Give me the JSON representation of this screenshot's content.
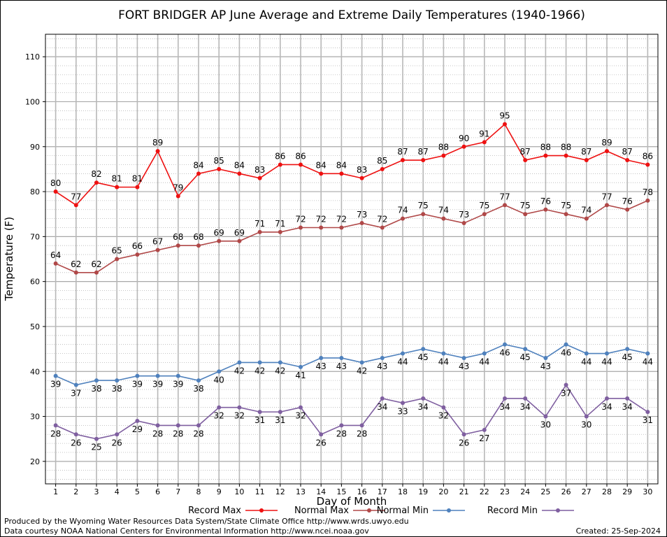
{
  "chart_data": {
    "type": "line",
    "title": "FORT BRIDGER AP June Average and Extreme Daily Temperatures (1940-1966)",
    "xlabel": "Day of Month",
    "ylabel": "Temperature (F)",
    "xlim": [
      0.5,
      30.5
    ],
    "ylim": [
      15,
      115
    ],
    "yticks": [
      20,
      30,
      40,
      50,
      60,
      70,
      80,
      90,
      100,
      110
    ],
    "x": [
      1,
      2,
      3,
      4,
      5,
      6,
      7,
      8,
      9,
      10,
      11,
      12,
      13,
      14,
      15,
      16,
      17,
      18,
      19,
      20,
      21,
      22,
      23,
      24,
      25,
      26,
      27,
      28,
      29,
      30
    ],
    "grid": true,
    "legend_position": "bottom",
    "series": [
      {
        "name": "Record Max",
        "color": "#ee1111",
        "label_pos": "above",
        "values": [
          80,
          77,
          82,
          81,
          81,
          89,
          79,
          84,
          85,
          84,
          83,
          86,
          86,
          84,
          84,
          83,
          85,
          87,
          87,
          88,
          90,
          91,
          95,
          87,
          88,
          88,
          87,
          89,
          87,
          86
        ]
      },
      {
        "name": "Normal Max",
        "color": "#b04848",
        "label_pos": "above",
        "values": [
          64,
          62,
          62,
          65,
          66,
          67,
          68,
          68,
          69,
          69,
          71,
          71,
          72,
          72,
          72,
          73,
          72,
          74,
          75,
          74,
          73,
          75,
          77,
          75,
          76,
          75,
          74,
          77,
          76,
          78
        ]
      },
      {
        "name": "Normal Min",
        "color": "#4f81bd",
        "label_pos": "below",
        "values": [
          39,
          37,
          38,
          38,
          39,
          39,
          39,
          38,
          40,
          42,
          42,
          42,
          41,
          43,
          43,
          42,
          43,
          44,
          45,
          44,
          43,
          44,
          46,
          45,
          43,
          46,
          44,
          44,
          45,
          44
        ]
      },
      {
        "name": "Record Min",
        "color": "#7f5fa0",
        "label_pos": "below",
        "values": [
          28,
          26,
          25,
          26,
          29,
          28,
          28,
          28,
          32,
          32,
          31,
          31,
          32,
          26,
          28,
          28,
          34,
          33,
          34,
          32,
          26,
          27,
          34,
          34,
          30,
          37,
          30,
          34,
          34,
          31
        ]
      }
    ]
  },
  "footer": {
    "produced_by": "Produced by the Wyoming Water Resources Data System/State Climate Office http://www.wrds.uwyo.edu",
    "data_courtesy": "Data courtesy NOAA National Centers for Environmental Information http://www.ncei.noaa.gov",
    "created": "Created:  25-Sep-2024"
  }
}
